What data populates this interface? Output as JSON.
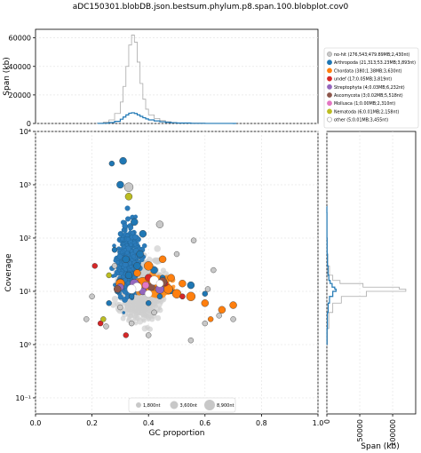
{
  "title": "aDC150301.blobDB.json.bestsum.phylum.p8.span.100.blobplot.cov0",
  "chart_data": {
    "type": "scatter",
    "xlabel": "GC proportion",
    "ylabel": "Coverage",
    "xlim": [
      0.0,
      1.0
    ],
    "ylim": [
      0.05,
      10000
    ],
    "y_scale": "log",
    "x_ticks": [
      "0.0",
      "0.2",
      "0.4",
      "0.6",
      "0.8",
      "1.0"
    ],
    "y_ticks": [
      {
        "value": 0.1,
        "label": "10⁻¹"
      },
      {
        "value": 1,
        "label": "10⁰"
      },
      {
        "value": 10,
        "label": "10¹"
      },
      {
        "value": 100,
        "label": "10²"
      },
      {
        "value": 1000,
        "label": "10³"
      },
      {
        "value": 10000,
        "label": "10⁴"
      }
    ],
    "grid": true,
    "legend_placement": "top-right",
    "top_histogram": {
      "ylabel": "Span (kb)",
      "y_ticks": [
        "0",
        "20000",
        "40000",
        "60000"
      ],
      "ylim": [
        0,
        66000
      ],
      "no_hit": {
        "color": "#c8c8c8",
        "x": [
          0.22,
          0.24,
          0.26,
          0.28,
          0.3,
          0.31,
          0.32,
          0.33,
          0.34,
          0.35,
          0.36,
          0.37,
          0.38,
          0.39,
          0.4,
          0.42,
          0.44,
          0.46,
          0.48,
          0.5,
          0.55,
          0.6,
          0.7
        ],
        "values": [
          200,
          900,
          2500,
          7000,
          15000,
          26000,
          40000,
          55000,
          62000,
          57000,
          43000,
          28000,
          17000,
          10000,
          6000,
          3500,
          2000,
          1200,
          700,
          400,
          200,
          80,
          10
        ]
      },
      "arthropoda": {
        "color": "#1f77b4",
        "x": [
          0.22,
          0.24,
          0.26,
          0.28,
          0.3,
          0.31,
          0.32,
          0.33,
          0.34,
          0.35,
          0.36,
          0.37,
          0.38,
          0.39,
          0.4,
          0.42,
          0.44,
          0.46,
          0.48,
          0.5,
          0.55,
          0.6,
          0.7
        ],
        "values": [
          50,
          200,
          600,
          1500,
          3000,
          4500,
          6000,
          7200,
          7500,
          7000,
          6000,
          5000,
          4000,
          3200,
          2500,
          1800,
          1200,
          800,
          500,
          300,
          120,
          40,
          5
        ]
      }
    },
    "right_histogram": {
      "xlabel": "Span (kb)",
      "x_ticks": [
        "0",
        "50000",
        "100000"
      ],
      "xlim": [
        0,
        135000
      ],
      "no_hit": {
        "color": "#c8c8c8",
        "y": [
          1,
          2,
          4,
          6,
          8,
          10,
          11,
          12,
          14,
          16,
          20,
          30,
          50,
          100,
          300
        ],
        "values": [
          1000,
          3000,
          9000,
          22000,
          60000,
          120000,
          110000,
          55000,
          20000,
          9000,
          4000,
          1500,
          600,
          200,
          50
        ]
      },
      "arthropoda": {
        "color": "#1f77b4",
        "y": [
          1,
          2,
          4,
          6,
          8,
          10,
          11,
          12,
          14,
          16,
          20,
          30,
          50,
          100,
          300
        ],
        "values": [
          200,
          800,
          2000,
          4000,
          9000,
          14000,
          12000,
          8000,
          5000,
          3000,
          1800,
          900,
          400,
          150,
          30
        ]
      }
    },
    "series": [
      {
        "name": "no-hit (276,543;479.89MB;2,430nt)",
        "color": "#c8c8c8",
        "legend_style": "open",
        "points": [
          [
            0.25,
            2.2,
            3
          ],
          [
            0.3,
            5,
            3
          ],
          [
            0.35,
            14,
            3
          ],
          [
            0.42,
            4,
            3
          ],
          [
            0.55,
            1.2,
            3
          ],
          [
            0.6,
            2.5,
            3
          ],
          [
            0.65,
            3.5,
            3
          ],
          [
            0.7,
            3,
            3
          ],
          [
            0.33,
            900,
            5
          ],
          [
            0.44,
            180,
            4
          ],
          [
            0.28,
            30,
            3
          ],
          [
            0.5,
            50,
            3
          ],
          [
            0.56,
            90,
            3
          ],
          [
            0.63,
            25,
            3
          ],
          [
            0.2,
            8,
            3
          ],
          [
            0.18,
            3,
            3
          ],
          [
            0.34,
            2.5,
            3
          ],
          [
            0.4,
            1.5,
            3
          ],
          [
            0.52,
            8,
            3
          ],
          [
            0.61,
            11,
            3
          ]
        ]
      },
      {
        "name": "Arthropoda (21,313;53.23MB;3,893nt)",
        "color": "#1f77b4",
        "legend_style": "filled",
        "points": [
          [
            0.3,
            1000,
            4
          ],
          [
            0.31,
            2800,
            4
          ],
          [
            0.27,
            2500,
            3
          ],
          [
            0.35,
            200,
            4
          ],
          [
            0.38,
            120,
            4
          ],
          [
            0.28,
            60,
            3
          ],
          [
            0.32,
            40,
            4
          ],
          [
            0.36,
            30,
            4
          ],
          [
            0.42,
            25,
            4
          ],
          [
            0.45,
            18,
            3
          ],
          [
            0.3,
            15,
            4
          ],
          [
            0.34,
            8,
            3
          ],
          [
            0.38,
            12,
            4
          ],
          [
            0.26,
            6,
            3
          ],
          [
            0.4,
            6,
            3
          ],
          [
            0.48,
            10,
            3
          ],
          [
            0.55,
            13,
            4
          ],
          [
            0.6,
            9,
            3
          ],
          [
            0.33,
            20,
            4
          ],
          [
            0.37,
            50,
            4
          ],
          [
            0.29,
            10,
            3
          ],
          [
            0.44,
            8,
            3
          ]
        ]
      },
      {
        "name": "Chordata (380;1.38MB;3,630nt)",
        "color": "#ff7f0e",
        "legend_style": "filled",
        "points": [
          [
            0.4,
            30,
            5
          ],
          [
            0.38,
            14,
            7
          ],
          [
            0.42,
            13,
            6
          ],
          [
            0.35,
            12,
            5
          ],
          [
            0.5,
            9,
            5
          ],
          [
            0.55,
            8,
            5
          ],
          [
            0.6,
            6,
            4
          ],
          [
            0.66,
            4.5,
            4
          ],
          [
            0.7,
            5.5,
            4
          ],
          [
            0.3,
            14,
            5
          ],
          [
            0.47,
            11,
            5
          ],
          [
            0.45,
            40,
            4
          ],
          [
            0.48,
            18,
            4
          ],
          [
            0.62,
            3,
            3
          ],
          [
            0.36,
            22,
            4
          ],
          [
            0.52,
            14,
            4
          ]
        ]
      },
      {
        "name": "undef (17;0.05MB;3,819nt)",
        "color": "#d62728",
        "legend_style": "filled",
        "points": [
          [
            0.32,
            1.5,
            3
          ],
          [
            0.4,
            18,
            4
          ],
          [
            0.46,
            14,
            3
          ],
          [
            0.23,
            2.5,
            3
          ],
          [
            0.21,
            30,
            3
          ],
          [
            0.52,
            8,
            3
          ],
          [
            0.36,
            13,
            4
          ]
        ]
      },
      {
        "name": "Streptophyta (4;0.03MB;6,232nt)",
        "color": "#9467bd",
        "legend_style": "filled",
        "points": [
          [
            0.35,
            14,
            5
          ],
          [
            0.44,
            11,
            5
          ],
          [
            0.3,
            12,
            4
          ],
          [
            0.38,
            10,
            4
          ]
        ]
      },
      {
        "name": "Ascomycota (3;0.02MB;5,518nt)",
        "color": "#8c564b",
        "legend_style": "filled",
        "points": [
          [
            0.45,
            15,
            5
          ],
          [
            0.41,
            12,
            4
          ],
          [
            0.29,
            11,
            4
          ]
        ]
      },
      {
        "name": "Mollusca (1;0.00MB;2,310nt)",
        "color": "#e377c2",
        "legend_style": "filled",
        "points": [
          [
            0.39,
            13,
            4
          ]
        ]
      },
      {
        "name": "Nematoda (6;0.01MB;2,158nt)",
        "color": "#bcbd22",
        "legend_style": "filled",
        "points": [
          [
            0.33,
            600,
            4
          ],
          [
            0.26,
            20,
            3
          ],
          [
            0.24,
            3,
            3
          ]
        ]
      },
      {
        "name": "other (5;0.01MB;3,455nt)",
        "color": "#ffffff",
        "legend_style": "open",
        "points": [
          [
            0.36,
            12,
            5
          ],
          [
            0.42,
            16,
            5
          ],
          [
            0.4,
            9,
            4
          ],
          [
            0.34,
            11,
            5
          ],
          [
            0.44,
            14,
            4
          ]
        ]
      }
    ],
    "size_legend": [
      "1,800nt",
      "3,600nt",
      "8,900nt"
    ]
  }
}
